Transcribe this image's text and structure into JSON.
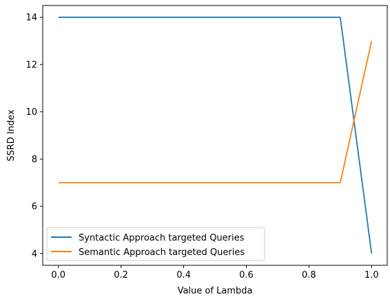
{
  "chart_data": {
    "type": "line",
    "title": "",
    "xlabel": "Value of Lambda",
    "ylabel": "SSRD Index",
    "xlim": [
      -0.05,
      1.05
    ],
    "ylim": [
      3.5,
      14.5
    ],
    "x_ticks": [
      0.0,
      0.2,
      0.4,
      0.6,
      0.8,
      1.0
    ],
    "x_tick_labels": [
      "0.0",
      "0.2",
      "0.4",
      "0.6",
      "0.8",
      "1.0"
    ],
    "y_ticks": [
      4,
      6,
      8,
      10,
      12,
      14
    ],
    "y_tick_labels": [
      "4",
      "6",
      "8",
      "10",
      "12",
      "14"
    ],
    "grid": false,
    "legend_position": "lower-left",
    "series": [
      {
        "name": "Syntactic Approach targeted Queries",
        "color": "#1f77b4",
        "x": [
          0.0,
          0.1,
          0.2,
          0.3,
          0.4,
          0.5,
          0.6,
          0.7,
          0.8,
          0.9,
          1.0
        ],
        "y": [
          14,
          14,
          14,
          14,
          14,
          14,
          14,
          14,
          14,
          14,
          4
        ]
      },
      {
        "name": "Semantic Approach targeted Queries",
        "color": "#ff7f0e",
        "x": [
          0.0,
          0.1,
          0.2,
          0.3,
          0.4,
          0.5,
          0.6,
          0.7,
          0.8,
          0.9,
          1.0
        ],
        "y": [
          7,
          7,
          7,
          7,
          7,
          7,
          7,
          7,
          7,
          7,
          13
        ]
      }
    ]
  }
}
